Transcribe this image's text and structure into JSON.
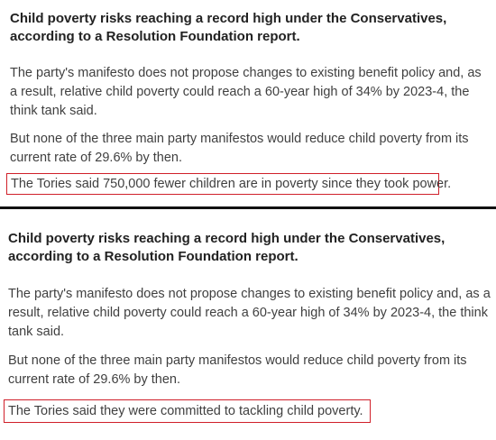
{
  "top_article": {
    "headline": "Child poverty risks reaching a record high under the Conservatives, according to a Resolution Foundation report.",
    "paragraph_1": "The party's manifesto does not propose changes to existing benefit policy and, as a result, relative child poverty could reach a 60-year high of 34% by 2023-4, the think tank said.",
    "paragraph_2": "But none of the three main party manifestos would reduce child poverty from its current rate of 29.6% by then.",
    "highlighted_sentence": "The Tories said 750,000 fewer children are in poverty since they took power."
  },
  "bottom_article": {
    "headline": "Child poverty risks reaching a record high under the Conservatives, according to a Resolution Foundation report.",
    "paragraph_1": "The party's manifesto does not propose changes to existing benefit policy and, as a result, relative child poverty could reach a 60-year high of 34% by 2023-4, the think tank said.",
    "paragraph_2": "But none of the three main party manifestos would reduce child poverty from its current rate of 29.6% by then.",
    "highlighted_sentence": "The Tories said they were committed to tackling child poverty."
  },
  "colors": {
    "highlight_border": "#d0202a",
    "divider": "#111111",
    "text": "#404040",
    "headline": "#222222"
  }
}
